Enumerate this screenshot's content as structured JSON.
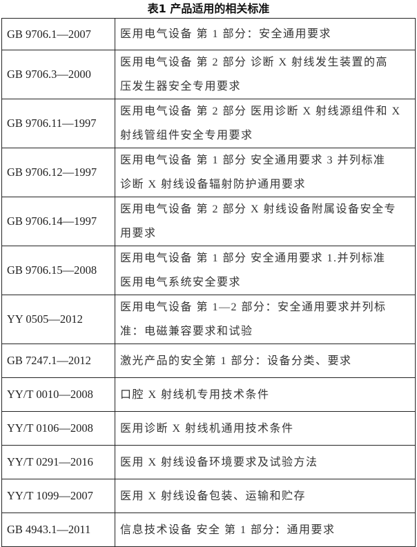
{
  "title": "表1  产品适用的相关标准",
  "rows": [
    {
      "code": "GB 9706.1—2007",
      "lines": [
        "医用电气设备 第 1 部分：安全通用要求"
      ]
    },
    {
      "code": "GB 9706.3—2000",
      "lines": [
        "医用电气设备 第 2 部分 诊断 X 射线发生装置的高",
        "压发生器安全专用要求"
      ]
    },
    {
      "code": "GB 9706.11—1997",
      "lines": [
        "医用电气设备 第 2 部分 医用诊断 X 射线源组件和 X",
        "射线管组件安全专用要求"
      ]
    },
    {
      "code": "GB 9706.12—1997",
      "lines": [
        "医用电气设备 第 1 部分 安全通用要求 3 并列标准",
        "诊断 X 射线设备辐射防护通用要求"
      ]
    },
    {
      "code": "GB 9706.14—1997",
      "lines": [
        "医用电气设备 第 2 部分 X 射线设备附属设备安全专",
        "用要求"
      ]
    },
    {
      "code": "GB 9706.15—2008",
      "lines": [
        "医用电气设备 第 1 部分 安全通用要求 1.并列标准",
        "医用电气系统安全要求"
      ]
    },
    {
      "code": "YY 0505—2012",
      "lines": [
        "医用电气设备 第 1—2 部分：安全通用要求并列标",
        "准：电磁兼容要求和试验"
      ]
    },
    {
      "code": "GB 7247.1—2012",
      "lines": [
        "激光产品的安全第 1 部分：设备分类、要求"
      ]
    },
    {
      "code": "YY/T 0010—2008",
      "lines": [
        "口腔 X 射线机专用技术条件"
      ]
    },
    {
      "code": "YY/T 0106—2008",
      "lines": [
        "医用诊断 X 射线机通用技术条件"
      ]
    },
    {
      "code": "YY/T 0291—2016",
      "lines": [
        "医用 X 射线设备环境要求及试验方法"
      ]
    },
    {
      "code": "YY/T 1099—2007",
      "lines": [
        "医用 X 射线设备包装、运输和贮存"
      ]
    },
    {
      "code": "GB 4943.1—2011",
      "lines": [
        "信息技术设备 安全 第 1 部分：通用要求"
      ]
    }
  ]
}
